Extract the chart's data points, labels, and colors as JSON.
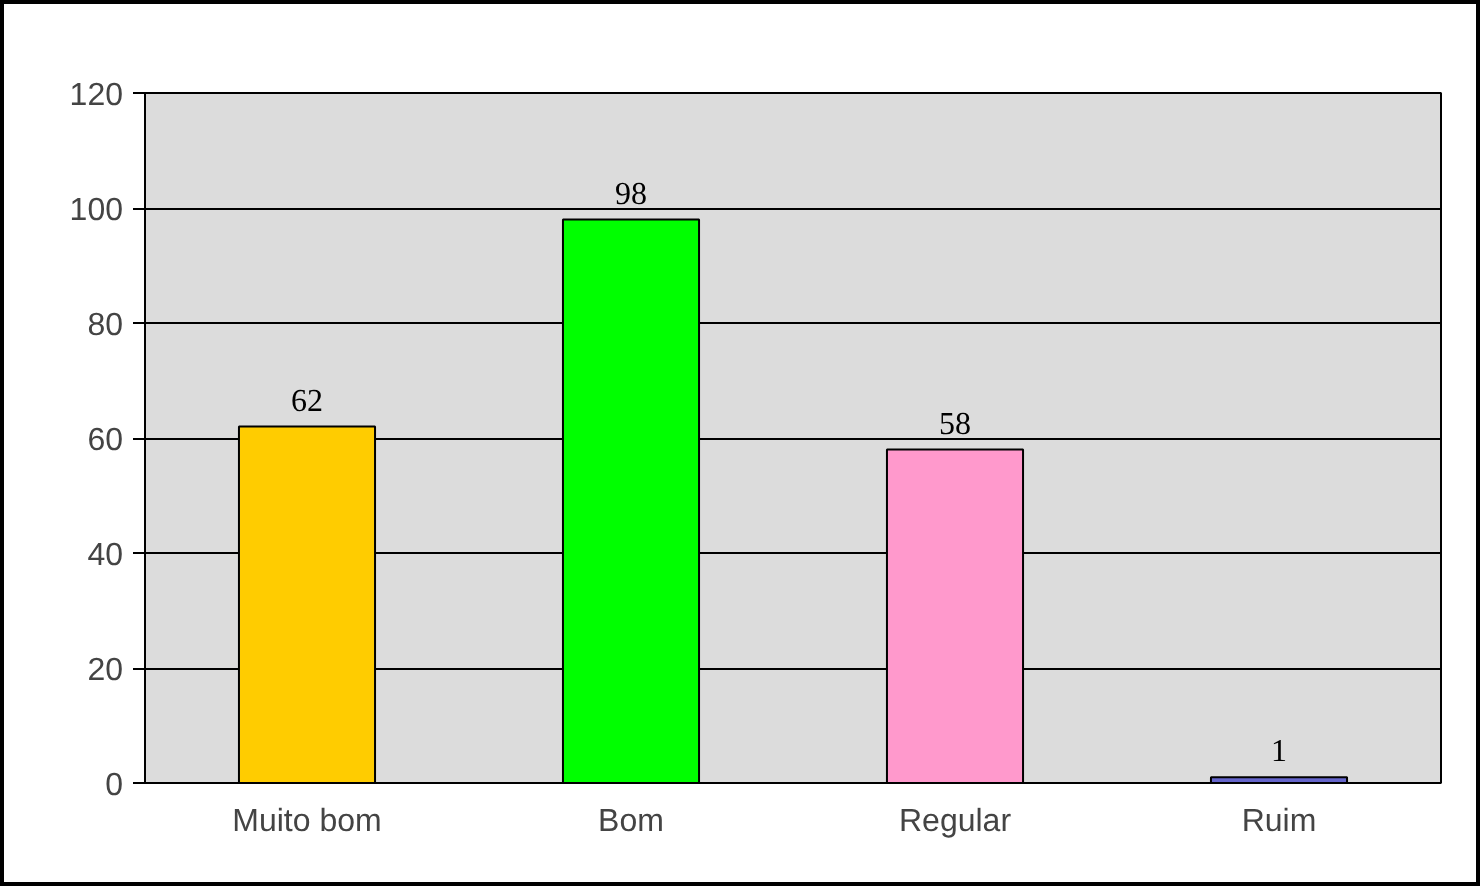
{
  "chart_data": {
    "type": "bar",
    "categories": [
      "Muito bom",
      "Bom",
      "Regular",
      "Ruim"
    ],
    "values": [
      62,
      98,
      58,
      1
    ],
    "colors": [
      "#ffcc00",
      "#00ff00",
      "#ff99cc",
      "#6666cc"
    ],
    "ylim": [
      0,
      120
    ],
    "yticks": [
      0,
      20,
      40,
      60,
      80,
      100,
      120
    ],
    "grid": "y",
    "data_labels": true
  }
}
